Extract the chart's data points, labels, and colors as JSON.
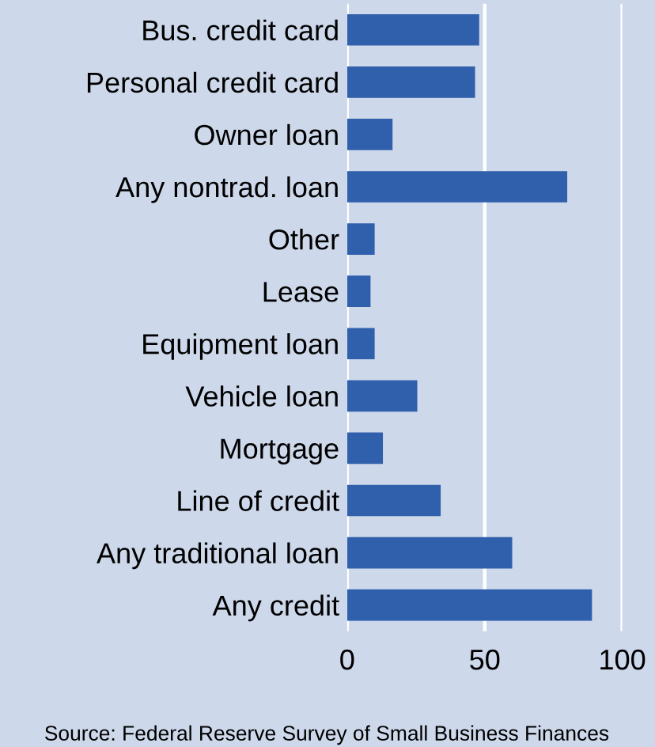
{
  "chart_data": {
    "type": "bar",
    "orientation": "horizontal",
    "categories": [
      "Bus. credit card",
      "Personal credit card",
      "Owner loan",
      "Any nontrad. loan",
      "Other",
      "Lease",
      "Equipment loan",
      "Vehicle loan",
      "Mortgage",
      "Line of credit",
      "Any traditional loan",
      "Any credit"
    ],
    "values": [
      48,
      46.5,
      16.5,
      80,
      10,
      8.5,
      10,
      25.5,
      13,
      34,
      60,
      89
    ],
    "color": "#3060ac",
    "xlim": [
      0,
      100
    ],
    "xticks": [
      0,
      50,
      100
    ],
    "grid": "x",
    "annotations": [
      "Source: Federal Reserve Survey of Small Business Finances"
    ]
  }
}
